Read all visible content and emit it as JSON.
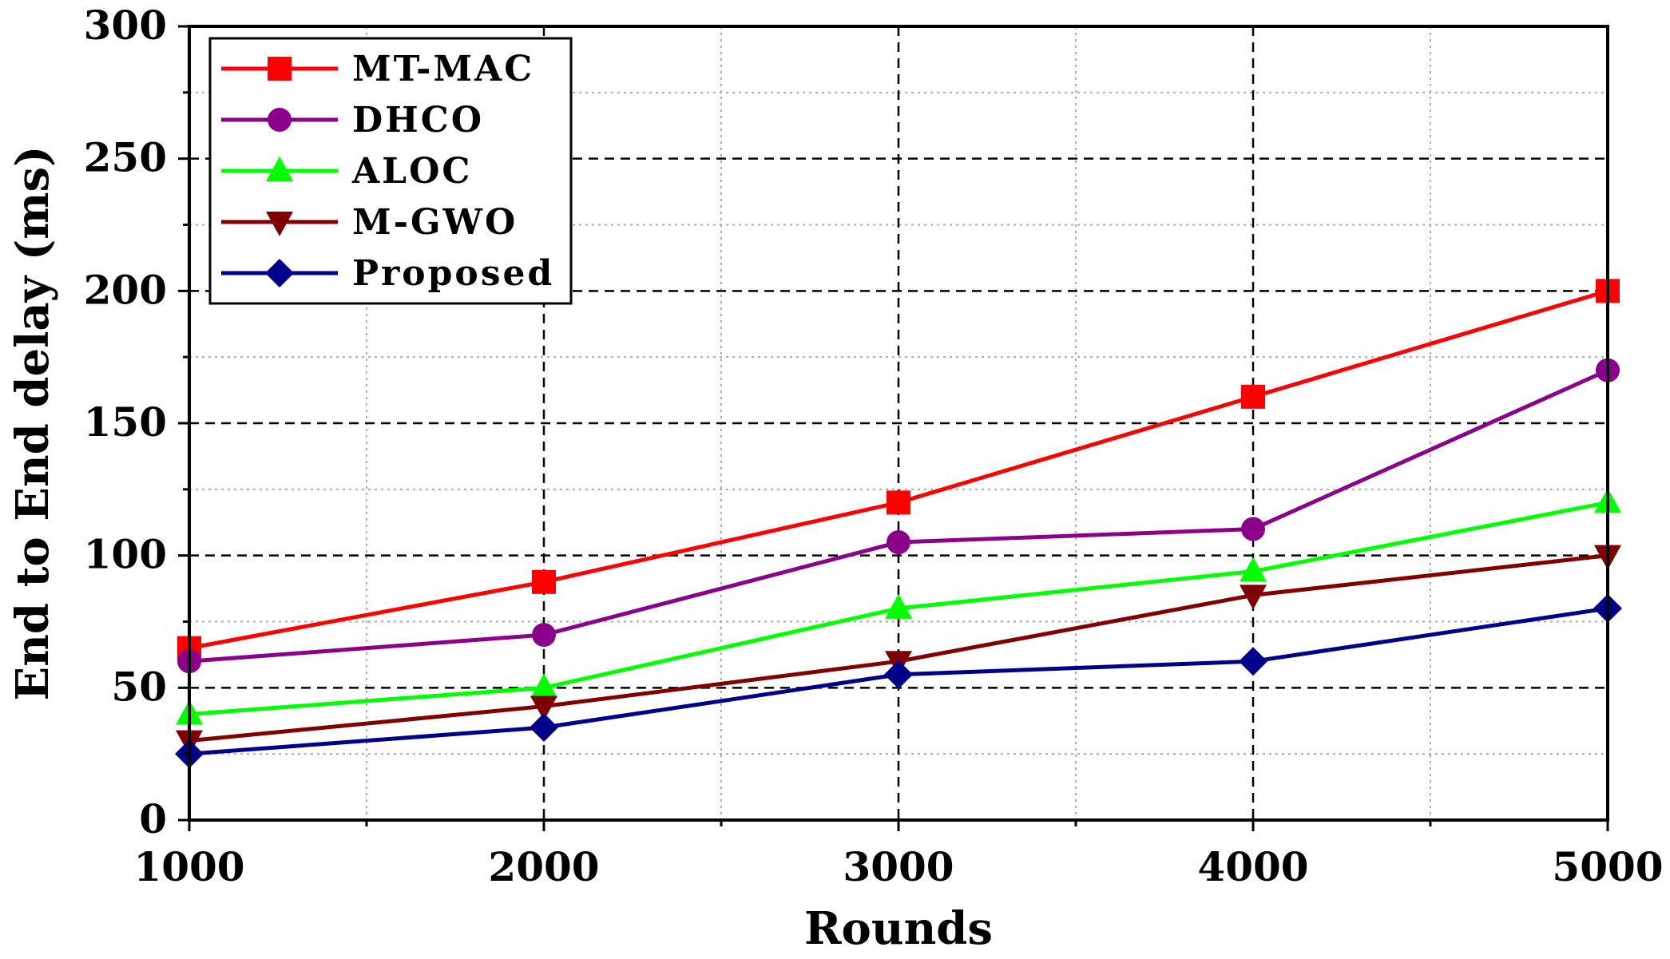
{
  "chart_data": {
    "type": "line",
    "xlabel": "Rounds",
    "ylabel": "End to End delay (ms)",
    "x": [
      1000,
      2000,
      3000,
      4000,
      5000
    ],
    "xlim": [
      1000,
      5000
    ],
    "ylim": [
      0,
      300
    ],
    "xticks": [
      "1000",
      "2000",
      "3000",
      "4000",
      "5000"
    ],
    "yticks": [
      "0",
      "50",
      "100",
      "150",
      "200",
      "250",
      "300"
    ],
    "grid": true,
    "legend_position": "top-left",
    "series": [
      {
        "name": "MT-MAC",
        "color": "#ff0000",
        "marker": "square",
        "values": [
          65,
          90,
          120,
          160,
          200
        ]
      },
      {
        "name": "DHCO",
        "color": "#8b008b",
        "marker": "circle",
        "values": [
          60,
          70,
          105,
          110,
          170
        ]
      },
      {
        "name": "ALOC",
        "color": "#00ff00",
        "marker": "triangle-up",
        "values": [
          40,
          50,
          80,
          94,
          120
        ]
      },
      {
        "name": "M-GWO",
        "color": "#800000",
        "marker": "triangle-down",
        "values": [
          30,
          43,
          60,
          85,
          100
        ]
      },
      {
        "name": "Proposed",
        "color": "#00008b",
        "marker": "diamond",
        "values": [
          25,
          35,
          55,
          60,
          80
        ]
      }
    ]
  }
}
